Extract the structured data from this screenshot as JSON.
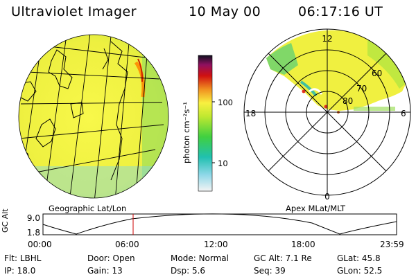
{
  "header": {
    "title": "Ultraviolet Imager",
    "date": "10 May 00",
    "time": "06:17:16 UT"
  },
  "colorbar": {
    "unit_label": "photon cm⁻²s⁻¹",
    "ticks": [
      "100",
      "10"
    ]
  },
  "left_panel": {
    "label": "Geographic Lat/Lon"
  },
  "right_panel": {
    "label": "Apex  MLat/MLT",
    "mlt_labels": {
      "top": "12",
      "left": "18",
      "right": "6",
      "bottom": "0"
    },
    "lat_labels": [
      "60",
      "70",
      "80"
    ]
  },
  "timeline": {
    "ylabel": "GC Alt",
    "yticks": [
      "9.0",
      "1.8"
    ],
    "xticks": [
      "00:00",
      "06:00",
      "12:00",
      "18:00",
      "23:59"
    ],
    "marker_time": "06:17"
  },
  "info_rows": [
    [
      {
        "k": "Flt:",
        "v": "LBHL"
      },
      {
        "k": "Door:",
        "v": "Open"
      },
      {
        "k": "Mode:",
        "v": "Normal"
      },
      {
        "k": "GC Alt:",
        "v": "7.1 Re"
      },
      {
        "k": "GLat:",
        "v": "45.8"
      }
    ],
    [
      {
        "k": "IP:",
        "v": "18.0"
      },
      {
        "k": "Gain:",
        "v": "13"
      },
      {
        "k": "Dsp:",
        "v": "5.6"
      },
      {
        "k": "Seq:",
        "v": "39"
      },
      {
        "k": "GLon:",
        "v": "52.5"
      }
    ]
  ],
  "colors": {
    "background": "#ffffff",
    "image_base": "#f0f040",
    "grid": "#000000",
    "marker": "#cc0000"
  }
}
